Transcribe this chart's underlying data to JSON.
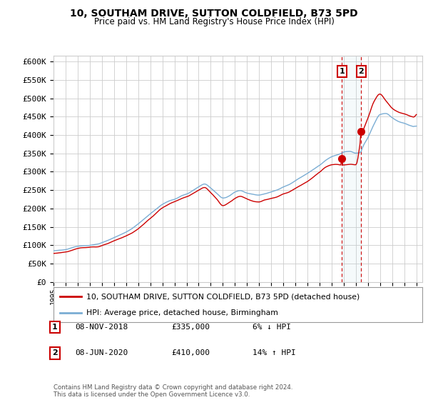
{
  "title": "10, SOUTHAM DRIVE, SUTTON COLDFIELD, B73 5PD",
  "subtitle": "Price paid vs. HM Land Registry's House Price Index (HPI)",
  "ylabel_ticks": [
    "£0",
    "£50K",
    "£100K",
    "£150K",
    "£200K",
    "£250K",
    "£300K",
    "£350K",
    "£400K",
    "£450K",
    "£500K",
    "£550K",
    "£600K"
  ],
  "ytick_values": [
    0,
    50000,
    100000,
    150000,
    200000,
    250000,
    300000,
    350000,
    400000,
    450000,
    500000,
    550000,
    600000
  ],
  "hpi_color": "#7aadd4",
  "price_color": "#cc0000",
  "grid_color": "#cccccc",
  "legend1_label": "10, SOUTHAM DRIVE, SUTTON COLDFIELD, B73 5PD (detached house)",
  "legend2_label": "HPI: Average price, detached house, Birmingham",
  "transaction1": {
    "label": "1",
    "date": "08-NOV-2018",
    "price": "£335,000",
    "pct": "6% ↓ HPI",
    "x": 2018.85
  },
  "transaction2": {
    "label": "2",
    "date": "08-JUN-2020",
    "price": "£410,000",
    "pct": "14% ↑ HPI",
    "x": 2020.44
  },
  "t1_price_val": 335000,
  "t2_price_val": 410000,
  "footnote": "Contains HM Land Registry data © Crown copyright and database right 2024.\nThis data is licensed under the Open Government Licence v3.0."
}
